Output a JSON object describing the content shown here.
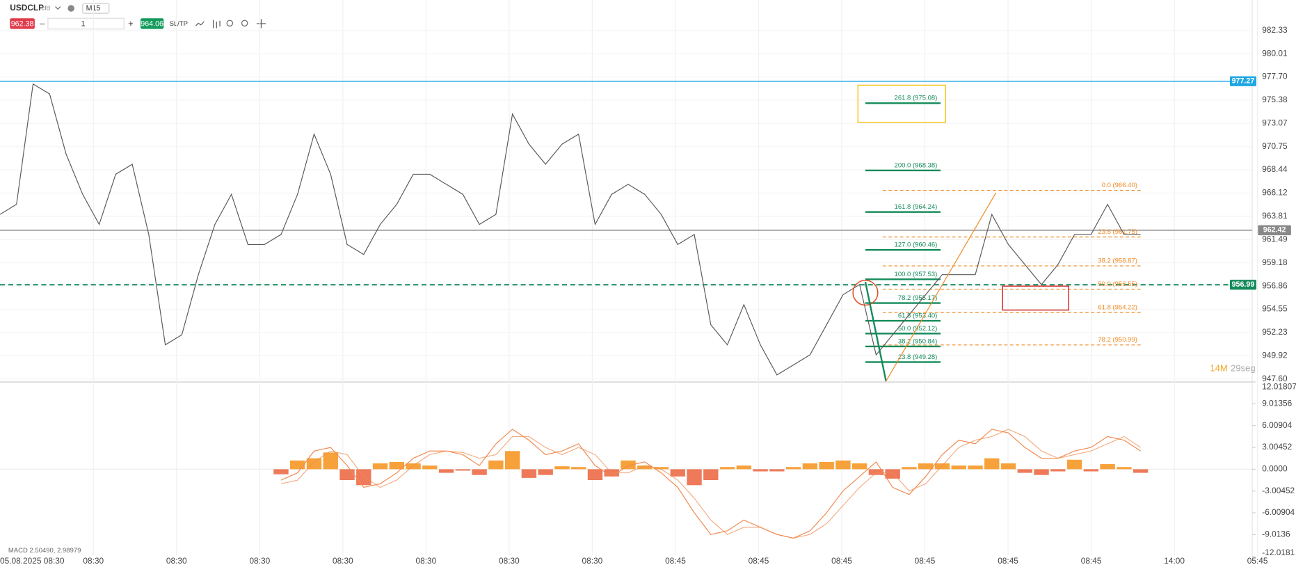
{
  "toolbar": {
    "symbol": "USDCLP",
    "kind": "cfd",
    "timeframe": "M15",
    "sell": "962.38",
    "quantity": "1",
    "buy": "964.06",
    "sltp": "SL/TP"
  },
  "chart_data": {
    "type": "line",
    "color": "#5a5a5a",
    "ylim": [
      947.3,
      984.37
    ],
    "yticks": [
      982.33,
      980.01,
      {
        "value": 977.7,
        "label": "977.70"
      },
      975.38,
      973.07,
      970.75,
      968.44,
      966.12,
      963.81,
      961.49,
      959.18,
      956.86,
      954.55,
      952.23,
      949.92,
      {
        "value": 947.6,
        "label": "947.60"
      }
    ],
    "x_labels": [
      "05.08.2025 08:30",
      "08:30",
      "08:30",
      "08:30",
      "08:30",
      "08:30",
      "08:30",
      "08:30",
      "08:45",
      "08:45",
      "08:45",
      "08:45",
      "08:45",
      "08:45",
      "14:00",
      "05:45"
    ],
    "values": [
      964,
      965,
      977,
      976,
      970,
      966,
      963,
      968,
      969,
      962,
      951,
      952,
      958,
      963,
      966,
      961,
      961,
      962,
      966,
      972,
      968,
      961,
      960,
      963,
      965,
      968,
      968,
      967,
      966,
      963,
      964,
      974,
      971,
      969,
      971,
      972,
      963,
      966,
      967,
      966,
      964,
      961,
      962,
      953,
      951,
      955,
      951,
      948,
      949,
      950,
      953,
      956,
      957,
      950,
      952,
      954,
      956,
      958,
      958,
      958,
      964,
      961,
      959,
      957,
      959,
      962,
      962,
      965,
      962,
      962
    ],
    "levels": [
      {
        "value": 977.27,
        "color": "#1ea7e4",
        "dashed": false
      },
      {
        "value": 956.99,
        "color": "#138a5a",
        "dashed": true
      },
      {
        "value": 962.42,
        "color": "#888888",
        "dashed": false
      }
    ],
    "fib_green": {
      "color": "#138a5a",
      "values": [
        975.08,
        968.38,
        964.24,
        960.46,
        957.53,
        955.17,
        953.4,
        952.12,
        950.84,
        949.28
      ],
      "value_labels": [
        "261.8 (975.08)",
        "200.0 (968.38)",
        "161.8 (964.24)",
        "127.0 (960.46)",
        "100.0 (957.53)",
        "78.2 (955.17)",
        "61.8 (953.40)",
        "50.0 (952.12)",
        "38.2 (950.84)",
        "23.8 (949.28)"
      ]
    },
    "fib_orange": {
      "color": "#f08a24",
      "values": [
        966.4,
        961.75,
        958.87,
        956.55,
        954.22,
        950.99
      ],
      "value_labels": [
        "0.0 (966.40)",
        "23.6 (961.75)",
        "38.2 (958.87)",
        "50.0 (956.55)",
        "61.8 (954.22)",
        "78.2 (950.99)"
      ]
    },
    "countdown": {
      "minutes": "14M",
      "seconds": "29seg"
    }
  },
  "macd_data": {
    "type": "histogram",
    "label": "MACD 2.50490, 2.98979",
    "ylim": [
      -11.9,
      11.9
    ],
    "yticks": [
      12.01807,
      9.01356,
      6.00904,
      3.00452,
      {
        "value": 0,
        "label": "0.0000"
      },
      -3.00452,
      -6.00904,
      -9.0136,
      -12.0181
    ],
    "pos_color": "#f7a13a",
    "neg_color": "#ee7a5a",
    "line_color": "#f08a50",
    "values": [
      -0.7,
      1.2,
      1.5,
      2.3,
      -1.5,
      -2.2,
      0.8,
      1.0,
      0.8,
      0.5,
      -0.5,
      -0.2,
      -0.8,
      1.2,
      2.5,
      -1.2,
      -0.8,
      0.4,
      0.3,
      -1.5,
      -1.0,
      1.2,
      0.5,
      0.3,
      -1.0,
      -2.2,
      -1.5,
      0.3,
      0.5,
      -0.3,
      -0.3,
      0.3,
      0.8,
      1.0,
      1.2,
      0.8,
      -0.8,
      -1.3,
      0.3,
      0.8,
      0.8,
      0.5,
      0.5,
      1.5,
      0.8,
      -0.5,
      -0.8,
      -0.3,
      1.3,
      -0.3,
      0.7,
      0.3,
      -0.5
    ],
    "macd": [
      -1.5,
      -0.5,
      2.5,
      3.0,
      0.5,
      -2.5,
      -2.0,
      -0.5,
      1.5,
      2.5,
      2.5,
      2.0,
      0.5,
      3.5,
      5.5,
      4.0,
      2.0,
      2.5,
      3.5,
      0.5,
      -1.0,
      0.5,
      1.0,
      -0.5,
      -2.5,
      -6,
      -9,
      -8.5,
      -7,
      -8,
      -9,
      -9.5,
      -8.5,
      -6,
      -3,
      -1,
      1,
      -2.5,
      -3.5,
      -1,
      2,
      4,
      3.5,
      5.5,
      5,
      3,
      1.5,
      1.5,
      2.5,
      3,
      4.5,
      4,
      2.5
    ],
    "signal": [
      -2,
      -1.5,
      1,
      2.5,
      2,
      -1,
      -2.5,
      -1.5,
      0.5,
      2,
      2.5,
      2.3,
      1.5,
      2,
      4.5,
      4.5,
      3,
      2,
      3,
      2,
      -0.5,
      -0.5,
      0.5,
      0,
      -1.5,
      -4,
      -7,
      -9,
      -8,
      -8,
      -9,
      -9.5,
      -9,
      -7.5,
      -5,
      -2.5,
      -0.5,
      -0.5,
      -3,
      -2,
      0.5,
      3,
      4,
      4.5,
      5.5,
      4.5,
      2.5,
      1.5,
      2,
      2.5,
      3.5,
      4.5,
      3
    ]
  }
}
